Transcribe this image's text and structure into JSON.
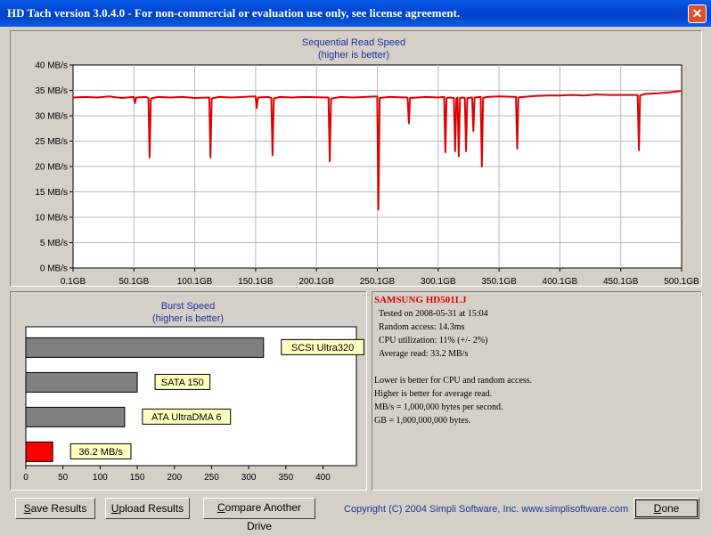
{
  "window": {
    "title": "HD Tach version 3.0.4.0  - For non-commercial or evaluation use only, see license agreement."
  },
  "chart_data": [
    {
      "type": "line",
      "title": "Sequential Read Speed",
      "subtitle": "(higher is better)",
      "x_ticks": [
        "0.1GB",
        "50.1GB",
        "100.1GB",
        "150.1GB",
        "200.1GB",
        "250.1GB",
        "300.1GB",
        "350.1GB",
        "400.1GB",
        "450.1GB",
        "500.1GB"
      ],
      "y_ticks": [
        "0 MB/s",
        "5 MB/s",
        "10 MB/s",
        "15 MB/s",
        "20 MB/s",
        "25 MB/s",
        "30 MB/s",
        "35 MB/s",
        "40 MB/s"
      ],
      "xlim": [
        0.1,
        500.1
      ],
      "ylim": [
        0,
        40
      ],
      "grid": true,
      "series": [
        {
          "color": "#e00000",
          "points": [
            [
              0.1,
              33.6
            ],
            [
              10,
              33.7
            ],
            [
              20,
              33.6
            ],
            [
              30,
              33.8
            ],
            [
              40,
              33.5
            ],
            [
              50,
              33.7
            ],
            [
              51,
              32.5
            ],
            [
              52,
              33.6
            ],
            [
              60,
              33.7
            ],
            [
              62,
              33.5
            ],
            [
              63,
              21.8
            ],
            [
              64,
              33.4
            ],
            [
              70,
              33.7
            ],
            [
              80,
              33.6
            ],
            [
              90,
              33.7
            ],
            [
              100,
              33.5
            ],
            [
              112,
              33.6
            ],
            [
              113,
              21.8
            ],
            [
              114,
              33.4
            ],
            [
              120,
              33.7
            ],
            [
              130,
              33.6
            ],
            [
              140,
              33.7
            ],
            [
              150,
              33.8
            ],
            [
              151,
              31.5
            ],
            [
              152,
              33.6
            ],
            [
              160,
              33.7
            ],
            [
              163,
              33.5
            ],
            [
              164,
              22.2
            ],
            [
              165,
              33.4
            ],
            [
              170,
              33.7
            ],
            [
              180,
              33.6
            ],
            [
              190,
              33.7
            ],
            [
              210,
              33.6
            ],
            [
              211,
              21.0
            ],
            [
              212,
              33.4
            ],
            [
              220,
              33.7
            ],
            [
              230,
              33.6
            ],
            [
              240,
              33.7
            ],
            [
              250,
              33.8
            ],
            [
              251,
              11.5
            ],
            [
              252,
              33.5
            ],
            [
              260,
              33.7
            ],
            [
              275,
              33.6
            ],
            [
              276,
              28.5
            ],
            [
              277,
              33.5
            ],
            [
              290,
              33.7
            ],
            [
              300,
              33.6
            ],
            [
              305,
              33.7
            ],
            [
              306,
              22.8
            ],
            [
              307,
              33.5
            ],
            [
              310,
              33.6
            ],
            [
              313,
              33.5
            ],
            [
              314,
              23.0
            ],
            [
              315,
              33.4
            ],
            [
              316,
              33.6
            ],
            [
              317,
              22.0
            ],
            [
              318,
              33.5
            ],
            [
              320,
              33.6
            ],
            [
              322,
              33.5
            ],
            [
              323,
              23.0
            ],
            [
              324,
              33.5
            ],
            [
              328,
              33.6
            ],
            [
              329,
              27.0
            ],
            [
              330,
              33.6
            ],
            [
              335,
              33.7
            ],
            [
              336,
              20.0
            ],
            [
              337,
              33.5
            ],
            [
              340,
              33.7
            ],
            [
              350,
              33.8
            ],
            [
              364,
              33.7
            ],
            [
              365,
              23.5
            ],
            [
              366,
              33.6
            ],
            [
              370,
              33.7
            ],
            [
              380,
              33.9
            ],
            [
              390,
              34.0
            ],
            [
              400,
              34.0
            ],
            [
              410,
              34.1
            ],
            [
              420,
              34.0
            ],
            [
              430,
              34.2
            ],
            [
              440,
              34.1
            ],
            [
              450,
              34.1
            ],
            [
              464,
              34.1
            ],
            [
              465,
              23.2
            ],
            [
              466,
              34.0
            ],
            [
              470,
              34.3
            ],
            [
              480,
              34.4
            ],
            [
              490,
              34.6
            ],
            [
              500.1,
              34.9
            ]
          ]
        }
      ]
    },
    {
      "type": "bar",
      "title": "Burst Speed",
      "subtitle": "(higher is better)",
      "orientation": "horizontal",
      "categories": [
        "SCSI Ultra320",
        "SATA 150",
        "ATA UltraDMA 6",
        "36.2 MB/s"
      ],
      "values": [
        320,
        150,
        133,
        36.2
      ],
      "colors": [
        "#808080",
        "#808080",
        "#808080",
        "#ff0000"
      ],
      "x_ticks": [
        "0",
        "50",
        "100",
        "150",
        "200",
        "250",
        "300",
        "350",
        "400"
      ],
      "xlim": [
        0,
        445
      ],
      "label_bg": "#ffffc0"
    }
  ],
  "info": {
    "drive_name": "SAMSUNG HD501LJ",
    "tested_on": "Tested on 2008-05-31 at 15:04",
    "random_access": "Random access: 14.3ms",
    "cpu_utilization": "CPU utilization: 11% (+/- 2%)",
    "average_read": "Average read: 33.2 MB/s",
    "note_lower": "Lower is better for CPU and random access.",
    "note_higher": "Higher is better for average read.",
    "note_mbs": "MB/s = 1,000,000 bytes per second.",
    "note_gb": "GB = 1,000,000,000 bytes."
  },
  "buttons": {
    "save": {
      "mnemonic": "S",
      "rest": "ave Results"
    },
    "upload": {
      "mnemonic": "U",
      "rest": "pload Results"
    },
    "compare": {
      "mnemonic": "C",
      "rest": "ompare Another Drive"
    },
    "done": {
      "mnemonic": "D",
      "rest": "one"
    }
  },
  "footer": {
    "copyright": "Copyright (C) 2004 Simpli Software, Inc. www.simplisoftware.com"
  }
}
